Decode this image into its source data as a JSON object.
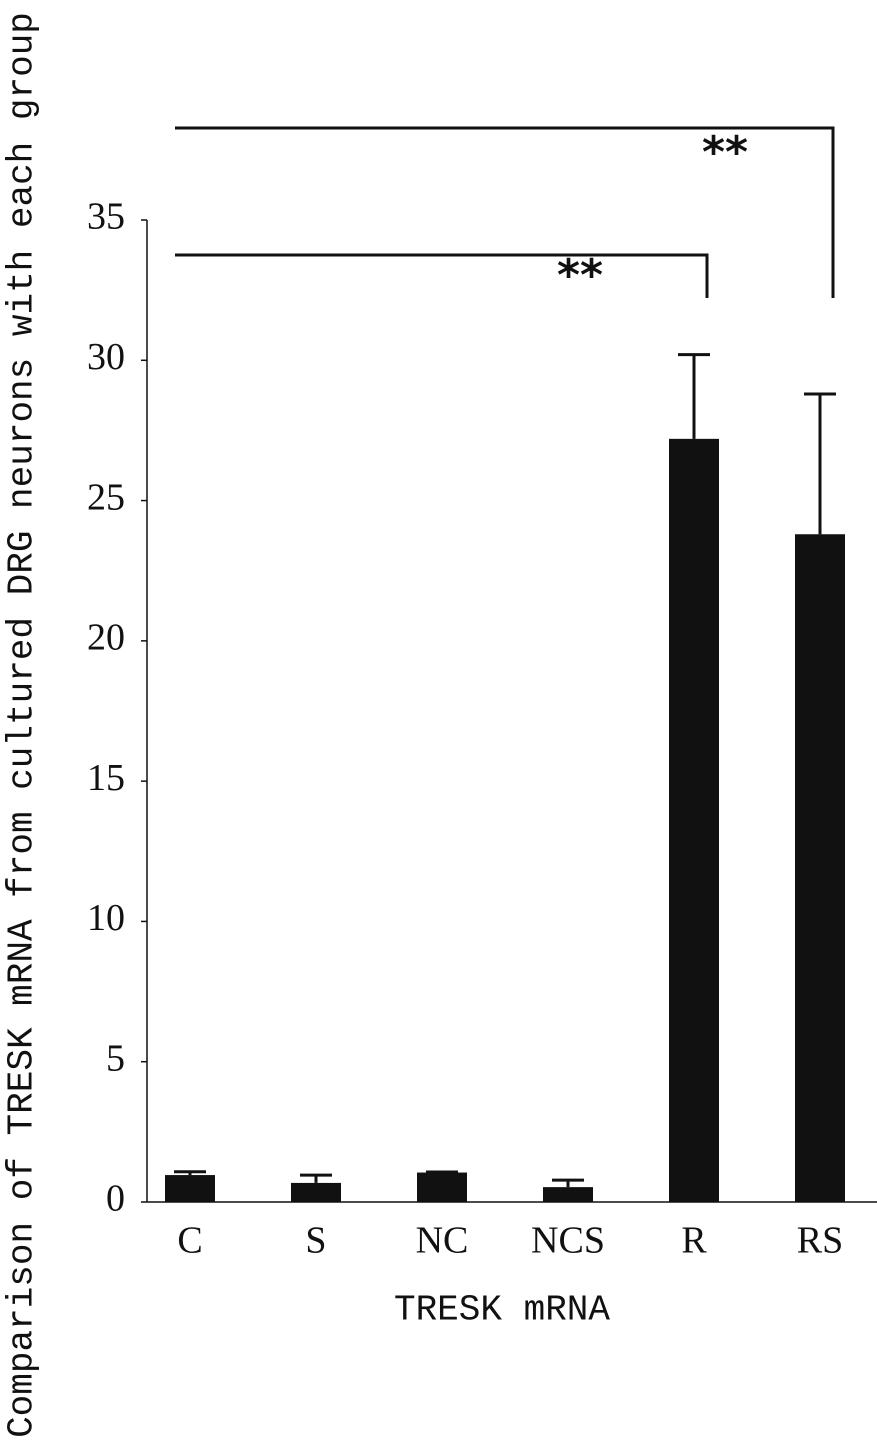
{
  "chart_data": {
    "type": "bar",
    "y_label": "Comparison of TRESK mRNA from cultured DRG neurons with each group",
    "x_label": "TRESK mRNA",
    "categories": [
      "C",
      "S",
      "NC",
      "NCS",
      "R",
      "RS"
    ],
    "values": [
      0.96,
      0.68,
      1.05,
      0.53,
      27.2,
      23.8
    ],
    "errors": [
      0.12,
      0.28,
      0.02,
      0.25,
      3.0,
      5.0
    ],
    "color": "#111111",
    "ylim": [
      0,
      35
    ],
    "yticks": [
      0,
      5,
      10,
      15,
      20,
      25,
      30,
      35
    ],
    "annotations": [
      "**",
      "**"
    ]
  }
}
